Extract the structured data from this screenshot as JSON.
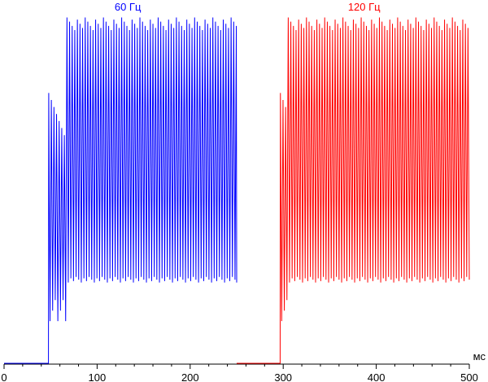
{
  "chart_data": {
    "type": "line",
    "title": "",
    "xlabel": "",
    "ylabel": "",
    "x_unit": "мс",
    "xlim": [
      0,
      500
    ],
    "ylim": [
      0,
      1
    ],
    "grid": false,
    "legend": "none",
    "x_ticks": [
      0,
      100,
      200,
      300,
      400,
      500
    ],
    "x_tick_labels": [
      "0",
      "100",
      "200",
      "300",
      "400",
      "500"
    ],
    "series": [
      {
        "name": "60 Гц",
        "color": "#0000ff",
        "x_start": 0,
        "x_end": 250,
        "baseline_level": 0.0,
        "rise_time": 48,
        "shelf_level": 0.77,
        "shelf_end": 65,
        "peak_level": 0.985,
        "trough_level": 0.23,
        "flicker_period_ms": 2.8
      },
      {
        "name": "120 Гц",
        "color": "#ff0000",
        "x_start": 250,
        "x_end": 500,
        "baseline_level": 0.0,
        "rise_time": 297,
        "shelf_level": 0.77,
        "shelf_end": 305,
        "peak_level": 0.985,
        "trough_level": 0.23,
        "flicker_period_ms": 2.8
      }
    ]
  }
}
